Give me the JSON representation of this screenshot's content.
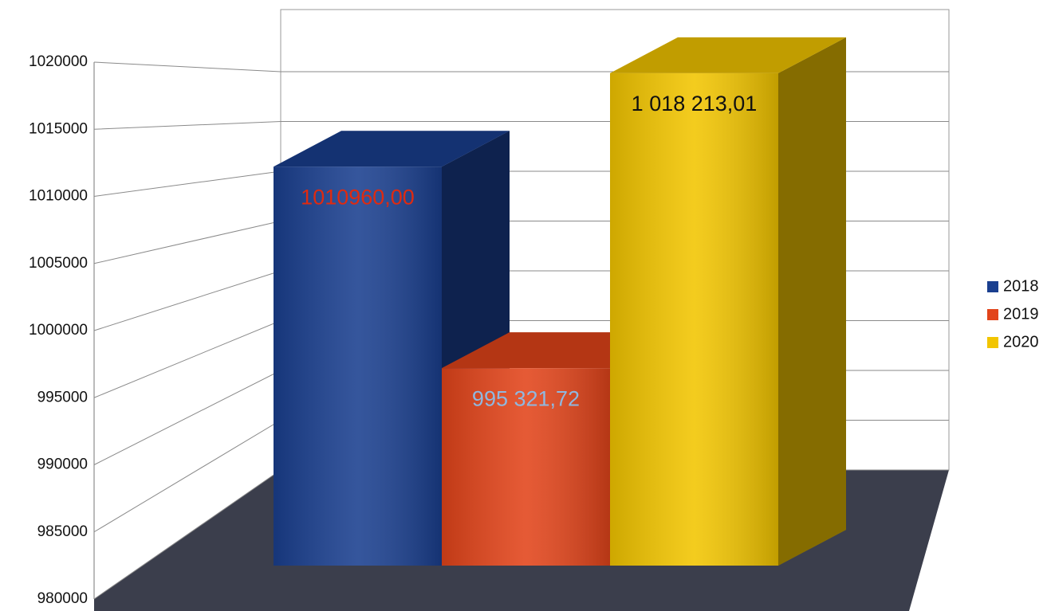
{
  "chart_data": {
    "type": "bar",
    "categories": [
      null
    ],
    "series": [
      {
        "name": "2018",
        "color": "#1a3f8f",
        "values": [
          1010960.0
        ],
        "value_labels": [
          "1010960,00"
        ],
        "value_label_color": "#e02a10"
      },
      {
        "name": "2019",
        "color": "#e2441a",
        "values": [
          995321.72
        ],
        "value_labels": [
          "995 321,72"
        ],
        "value_label_color": "#8fb8e0"
      },
      {
        "name": "2020",
        "color": "#f2c500",
        "values": [
          1018213.01
        ],
        "value_labels": [
          "1 018 213,01"
        ],
        "value_label_color": "#111111"
      }
    ],
    "ylim": [
      980000,
      1020000
    ],
    "yticks": [
      980000,
      985000,
      990000,
      995000,
      1000000,
      1005000,
      1010000,
      1015000,
      1020000
    ],
    "grid": true,
    "legend": "right"
  }
}
